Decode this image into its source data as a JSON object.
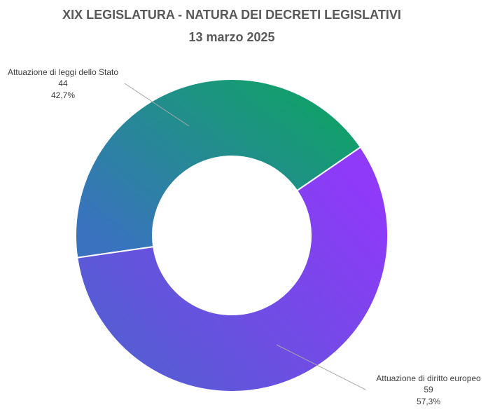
{
  "chart_data": {
    "type": "donut",
    "title": "XIX LEGISLATURA - NATURA DEI DECRETI LEGISLATIVI",
    "subtitle": "13 marzo 2025",
    "categories": [
      "Attuazione di leggi dello Stato",
      "Attuazione di diritto europeo"
    ],
    "values": [
      44,
      59
    ],
    "percent_labels": [
      "42,7%",
      "57,3%"
    ],
    "gradients": [
      [
        "#0aa85a",
        "#3a72c0"
      ],
      [
        "#8e3af8",
        "#4a64cc"
      ]
    ]
  }
}
